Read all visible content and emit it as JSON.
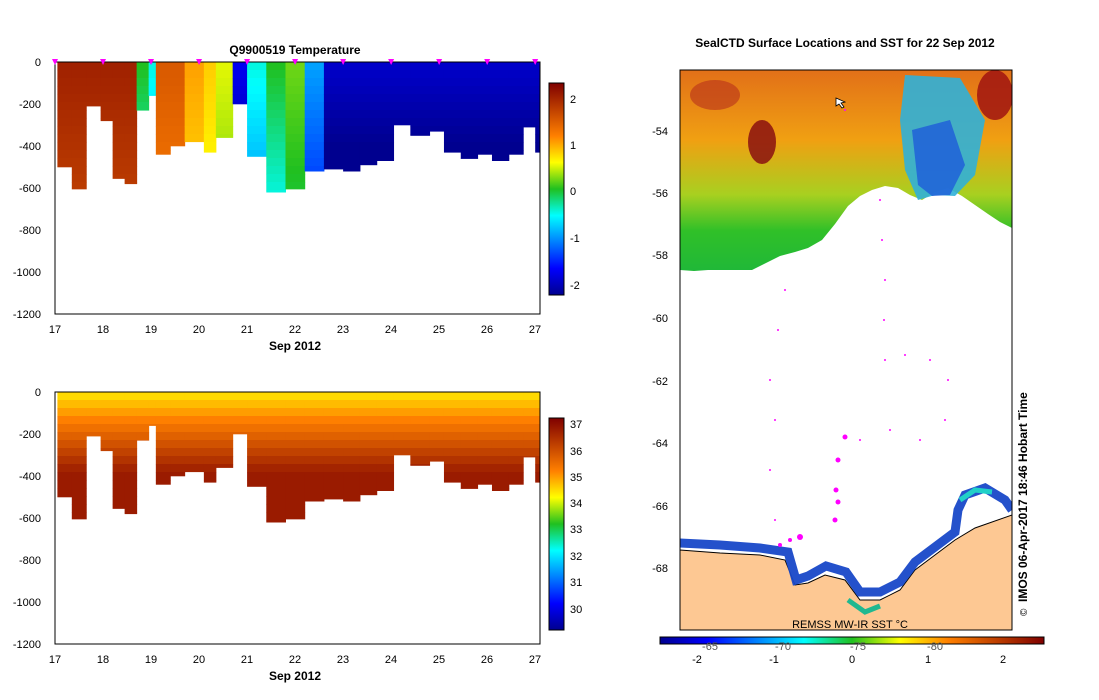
{
  "chart_data": [
    {
      "type": "heatmap",
      "title": "Q9900519  Temperature",
      "xlabel": "Sep 2012",
      "ylabel": "",
      "x_ticks": [
        "17",
        "18",
        "19",
        "20",
        "21",
        "22",
        "23",
        "24",
        "25",
        "26",
        "27"
      ],
      "y_ticks": [
        "0",
        "-200",
        "-400",
        "-600",
        "-800",
        "-1000",
        "-1200"
      ],
      "xlim": [
        17,
        27.1
      ],
      "ylim": [
        -1200,
        0
      ],
      "colorbar_ticks": [
        "2",
        "1",
        "0",
        "-1",
        "-2"
      ],
      "colorbar_range": [
        -2.3,
        2.3
      ],
      "profiles": [
        {
          "t": 17.05,
          "depth": 500,
          "surface": 2.0
        },
        {
          "t": 17.35,
          "depth": 605,
          "surface": 2.0
        },
        {
          "t": 17.65,
          "depth": 210,
          "surface": 2.0
        },
        {
          "t": 17.95,
          "depth": 280,
          "surface": 2.0
        },
        {
          "t": 18.2,
          "depth": 555,
          "surface": 2.0
        },
        {
          "t": 18.45,
          "depth": 580,
          "surface": 2.0
        },
        {
          "t": 18.7,
          "depth": 230,
          "surface": 0.0
        },
        {
          "t": 18.95,
          "depth": 160,
          "surface": -0.5
        },
        {
          "t": 19.1,
          "depth": 440,
          "surface": 1.5
        },
        {
          "t": 19.4,
          "depth": 400,
          "surface": 1.5
        },
        {
          "t": 19.7,
          "depth": 380,
          "surface": 1.0
        },
        {
          "t": 20.1,
          "depth": 430,
          "surface": 0.8
        },
        {
          "t": 20.35,
          "depth": 360,
          "surface": 0.5
        },
        {
          "t": 20.7,
          "depth": 200,
          "surface": -1.8
        },
        {
          "t": 21.0,
          "depth": 450,
          "surface": -0.5
        },
        {
          "t": 21.4,
          "depth": 620,
          "surface": 0.0
        },
        {
          "t": 21.8,
          "depth": 605,
          "surface": 0.2
        },
        {
          "t": 22.2,
          "depth": 520,
          "surface": -1.0
        },
        {
          "t": 22.6,
          "depth": 510,
          "surface": -2.0
        },
        {
          "t": 23.0,
          "depth": 520,
          "surface": -2.0
        },
        {
          "t": 23.35,
          "depth": 490,
          "surface": -2.0
        },
        {
          "t": 23.7,
          "depth": 470,
          "surface": -2.0
        },
        {
          "t": 24.05,
          "depth": 300,
          "surface": -2.0
        },
        {
          "t": 24.4,
          "depth": 350,
          "surface": -2.0
        },
        {
          "t": 24.8,
          "depth": 330,
          "surface": -2.0
        },
        {
          "t": 25.1,
          "depth": 430,
          "surface": -2.0
        },
        {
          "t": 25.45,
          "depth": 460,
          "surface": -2.0
        },
        {
          "t": 25.8,
          "depth": 440,
          "surface": -2.0
        },
        {
          "t": 26.1,
          "depth": 470,
          "surface": -2.0
        },
        {
          "t": 26.45,
          "depth": 440,
          "surface": -2.0
        },
        {
          "t": 26.75,
          "depth": 310,
          "surface": -2.0
        },
        {
          "t": 27.0,
          "depth": 430,
          "surface": -2.0
        }
      ]
    },
    {
      "type": "heatmap",
      "title": "",
      "xlabel": "Sep 2012",
      "ylabel": "",
      "x_ticks": [
        "17",
        "18",
        "19",
        "20",
        "21",
        "22",
        "23",
        "24",
        "25",
        "26",
        "27"
      ],
      "y_ticks": [
        "0",
        "-200",
        "-400",
        "-600",
        "-800",
        "-1000",
        "-1200"
      ],
      "xlim": [
        17,
        27.1
      ],
      "ylim": [
        -1200,
        0
      ],
      "colorbar_ticks": [
        "37",
        "36",
        "35",
        "34",
        "33",
        "32",
        "31",
        "30"
      ],
      "colorbar_range": [
        29.5,
        37.2
      ]
    },
    {
      "type": "heatmap",
      "title": "SealCTD Surface Locations and SST for 22 Sep 2012",
      "xlabel": "REMSS MW-IR SST °C",
      "x_ticks": [
        "-65",
        "-70",
        "-75",
        "-80"
      ],
      "y_ticks": [
        "-54",
        "-56",
        "-58",
        "-60",
        "-62",
        "-64",
        "-66",
        "-68"
      ],
      "xlim": [
        -61.5,
        -85.5
      ],
      "ylim": [
        -70,
        -52
      ],
      "colorbar_ticks": [
        "-2",
        "-1",
        "0",
        "1",
        "2"
      ],
      "colorbar_range": [
        -2.5,
        2.5
      ],
      "credit": "IMOS 06-Apr-2017 18:46 Hobart Time",
      "credit_symbol": "©"
    }
  ],
  "colors": {
    "land": "#fdc893",
    "marker": "#ff00ff",
    "axis": "#000000"
  }
}
